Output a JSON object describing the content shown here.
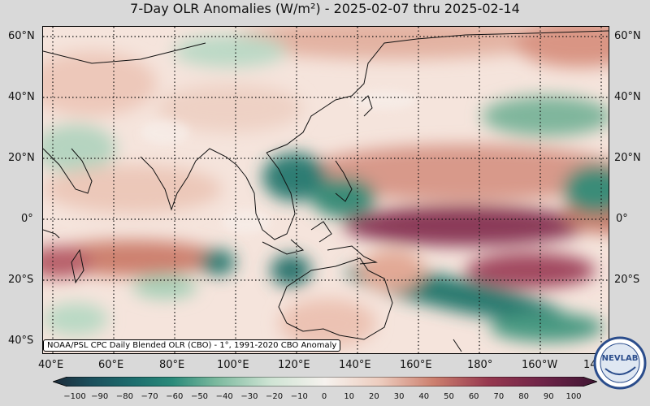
{
  "title": "7-Day OLR Anomalies (W/m²) - 2025-02-07 thru 2025-02-14",
  "lat_labels_left": [
    "60°N",
    "40°N",
    "20°N",
    "0°",
    "20°S",
    "40°S"
  ],
  "lat_labels_right": [
    "60°N",
    "40°N",
    "20°N",
    "0°",
    "20°S"
  ],
  "lon_labels": [
    "40°E",
    "60°E",
    "80°E",
    "100°E",
    "120°E",
    "140°E",
    "160°E",
    "180°",
    "160°W",
    "14"
  ],
  "source_note": "NOAA/PSL CPC Daily Blended OLR (CBO) - 1°, 1991-2020 CBO Anomaly",
  "colorbar": {
    "ticks": [
      "−100",
      "−90",
      "−80",
      "−70",
      "−60",
      "−50",
      "−40",
      "−30",
      "−20",
      "−10",
      "0",
      "10",
      "20",
      "30",
      "40",
      "50",
      "60",
      "70",
      "80",
      "90",
      "100"
    ],
    "colors": [
      "#1c2b3a",
      "#1b4f5c",
      "#1d6e6e",
      "#2a8a7a",
      "#4da08a",
      "#7bb99e",
      "#a7d0b6",
      "#cfe4d4",
      "#f6f2ee",
      "#edcdbf",
      "#dfa694",
      "#cc7f6e",
      "#b4575a",
      "#96384f",
      "#6e2448",
      "#3f1533"
    ]
  },
  "logo_text": "NEVLAB",
  "colors": {
    "positive_strong": "#7d2955",
    "positive": "#c67a6a",
    "negative": "#3f8f79",
    "negative_strong": "#1d6a66",
    "neutral": "#f6ece7"
  }
}
